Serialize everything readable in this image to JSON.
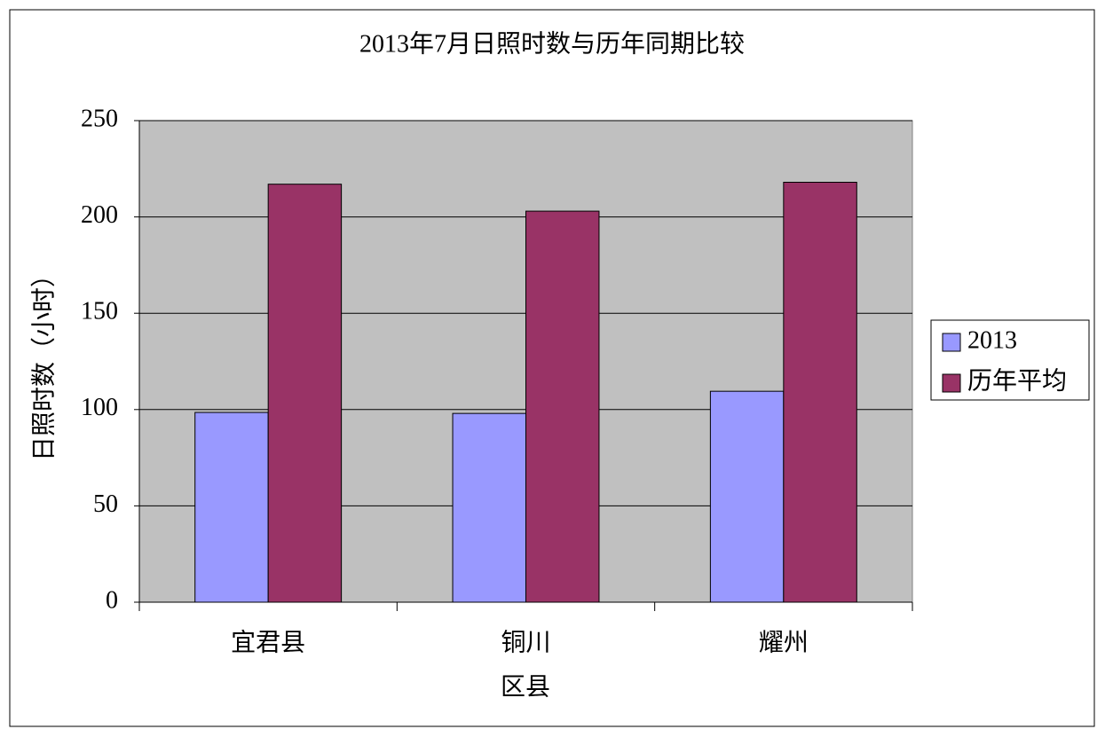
{
  "chart_data": {
    "type": "bar",
    "title": "2013年7月日照时数与历年同期比较",
    "x_label": "区县",
    "y_label": "日照时数（小时）",
    "categories": [
      "宜君县",
      "铜川",
      "耀州"
    ],
    "series": [
      {
        "name": "2013",
        "color": "#9999ff",
        "values": [
          98.5,
          98,
          109.5
        ]
      },
      {
        "name": "历年平均",
        "color": "#993366",
        "values": [
          217,
          203,
          218
        ]
      }
    ],
    "ylim": [
      0,
      250
    ],
    "yticks": [
      0,
      50,
      100,
      150,
      200,
      250
    ],
    "grid": true,
    "legend": "right"
  }
}
